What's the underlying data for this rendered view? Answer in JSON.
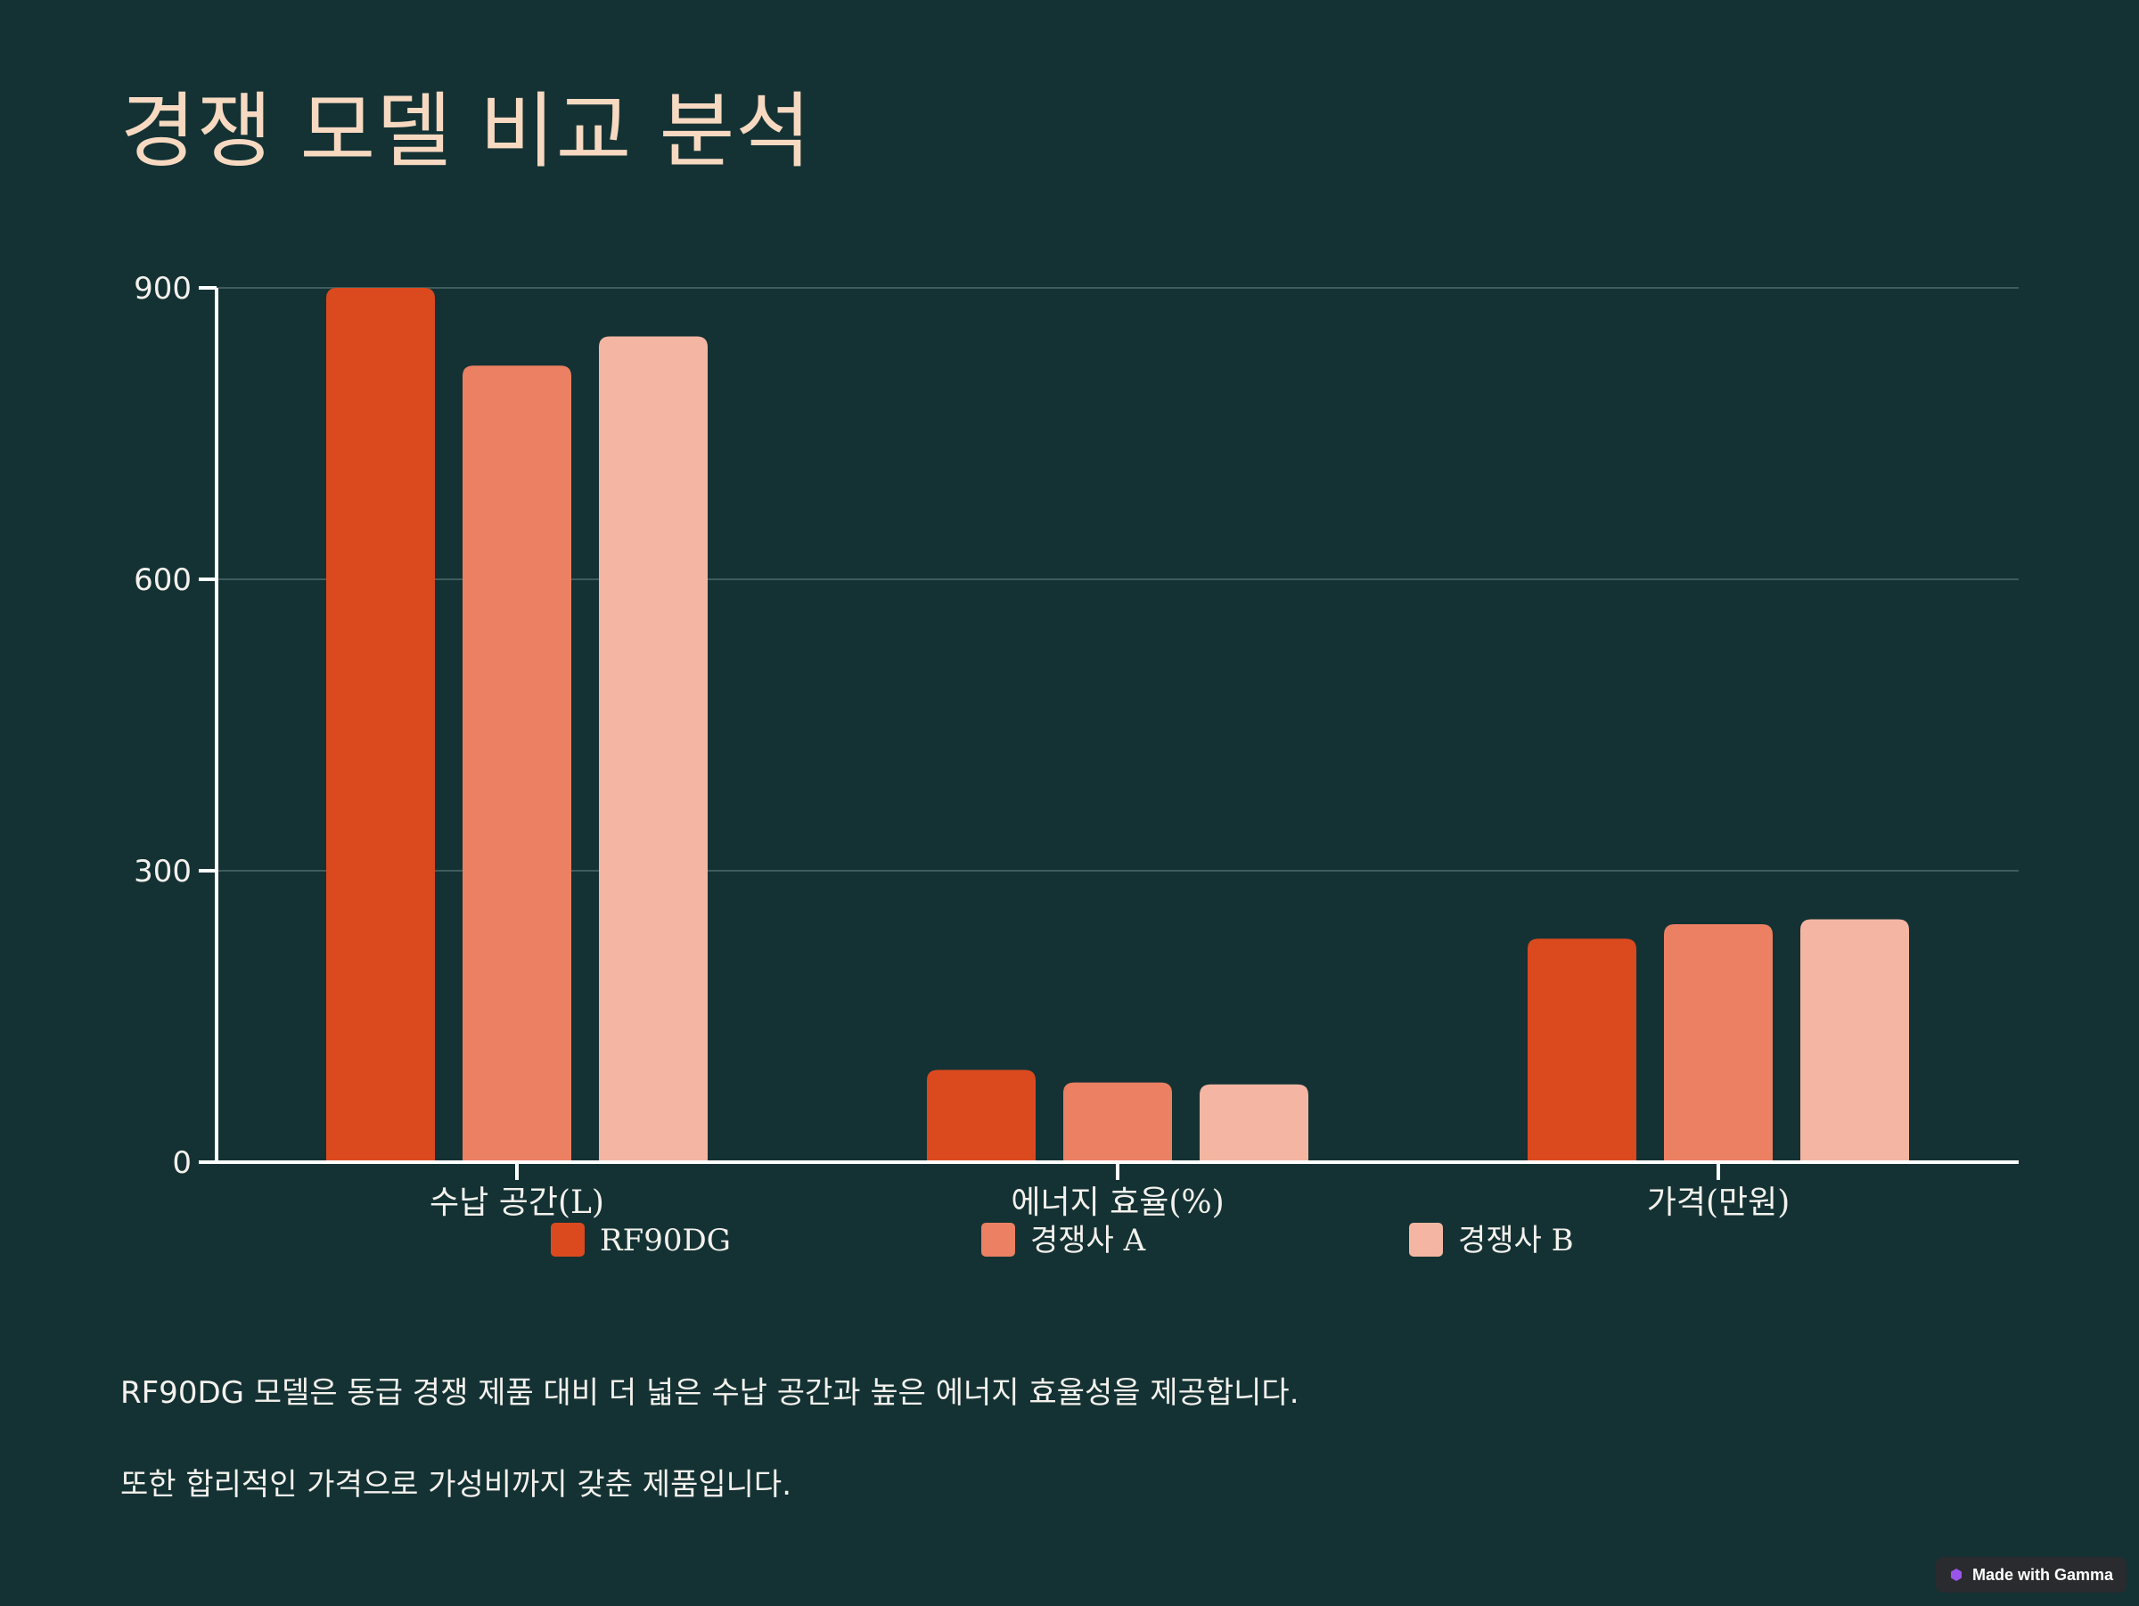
{
  "colors": {
    "background": "#143234",
    "title": "#F7D9C1",
    "text": "#F4F1EC",
    "axis": "#FFFFFF",
    "grid": "#3F5B5B",
    "badge_bg": "#2A2B2E",
    "badge_text": "#FFFFFF",
    "badge_icon": "#9A55E8"
  },
  "slide": {
    "title": "경쟁 모델 비교 분석"
  },
  "description": {
    "line1": "RF90DG 모델은 동급 경쟁 제품 대비 더 넓은 수납 공간과 높은 에너지 효율성을 제공합니다.",
    "line2": "또한 합리적인 가격으로 가성비까지 갖춘 제품입니다."
  },
  "badge": {
    "label": "Made with Gamma",
    "icon": "gamma-logo-icon"
  },
  "chart_data": {
    "type": "bar",
    "categories": [
      "수납 공간(L)",
      "에너지 효율(%)",
      "가격(만원)"
    ],
    "series": [
      {
        "name": "RF90DG",
        "values": [
          900,
          95,
          230
        ],
        "color": "#DB4A1E"
      },
      {
        "name": "경쟁사 A",
        "values": [
          820,
          82,
          245
        ],
        "color": "#EC8062"
      },
      {
        "name": "경쟁사 B",
        "values": [
          850,
          80,
          250
        ],
        "color": "#F4B6A2"
      }
    ],
    "ylim": [
      0,
      900
    ],
    "yticks": [
      "0",
      "300",
      "600",
      "900"
    ],
    "grid": true,
    "legend": "bottom"
  }
}
